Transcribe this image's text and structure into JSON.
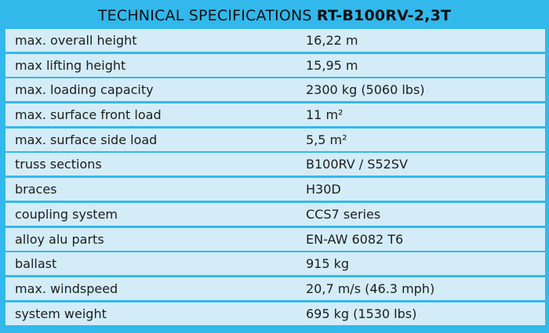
{
  "title": {
    "prefix": "TECHNICAL SPECIFICATIONS",
    "model": "RT-B100RV-2,3T"
  },
  "specs": [
    {
      "label": "max. overall height",
      "value": "16,22 m"
    },
    {
      "label": "max lifting height",
      "value": "15,95 m"
    },
    {
      "label": "max. loading capacity",
      "value": "2300 kg (5060 lbs)"
    },
    {
      "label": "max. surface front load",
      "value": "11 m²"
    },
    {
      "label": "max. surface side load",
      "value": "5,5 m²"
    },
    {
      "label": "truss sections",
      "value": "B100RV / S52SV"
    },
    {
      "label": "braces",
      "value": "H30D"
    },
    {
      "label": "coupling system",
      "value": "CCS7 series"
    },
    {
      "label": "alloy alu parts",
      "value": "EN-AW 6082 T6"
    },
    {
      "label": "ballast",
      "value": "915 kg"
    },
    {
      "label": "max. windspeed",
      "value": "20,7 m/s (46.3 mph)"
    },
    {
      "label": "system weight",
      "value": "695 kg (1530 lbs)"
    }
  ],
  "colors": {
    "background": "#33b8ec",
    "row_fill": "#d4ecf7"
  }
}
